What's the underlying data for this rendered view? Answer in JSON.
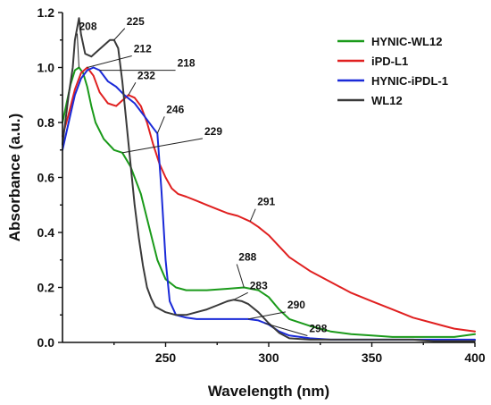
{
  "chart_data": {
    "type": "line",
    "xlabel": "Wavelength (nm)",
    "ylabel": "Absorbance (a.u.)",
    "xlim": [
      200,
      400
    ],
    "ylim": [
      0,
      1.2
    ],
    "xticks": [
      250,
      300,
      350,
      400
    ],
    "xtick_labels": [
      "250",
      "300",
      "350",
      "400"
    ],
    "yticks": [
      0.0,
      0.2,
      0.4,
      0.6,
      0.8,
      1.0,
      1.2
    ],
    "ytick_labels": [
      "0.0",
      "0.2",
      "0.4",
      "0.6",
      "0.8",
      "1.0",
      "1.2"
    ],
    "legend_position": "top-right",
    "series": [
      {
        "name": "HYNIC-WL12",
        "color": "#1a9a1a",
        "x": [
          200,
          204,
          206,
          208,
          210,
          212,
          214,
          216,
          220,
          225,
          229,
          233,
          238,
          242,
          246,
          250,
          255,
          260,
          265,
          270,
          280,
          288,
          295,
          300,
          305,
          310,
          320,
          330,
          340,
          350,
          360,
          370,
          380,
          390,
          400
        ],
        "y": [
          0.8,
          0.94,
          0.99,
          1.0,
          0.98,
          0.93,
          0.86,
          0.8,
          0.74,
          0.7,
          0.69,
          0.64,
          0.54,
          0.42,
          0.3,
          0.23,
          0.2,
          0.19,
          0.19,
          0.19,
          0.195,
          0.2,
          0.19,
          0.165,
          0.12,
          0.085,
          0.06,
          0.04,
          0.03,
          0.025,
          0.02,
          0.02,
          0.02,
          0.02,
          0.03
        ]
      },
      {
        "name": "iPD-L1",
        "color": "#e02020",
        "x": [
          200,
          203,
          206,
          209,
          212,
          215,
          218,
          222,
          226,
          229,
          232,
          235,
          238,
          241,
          244,
          247,
          250,
          253,
          256,
          260,
          265,
          270,
          275,
          280,
          285,
          291,
          295,
          300,
          305,
          310,
          320,
          330,
          340,
          350,
          360,
          370,
          380,
          385,
          390,
          400
        ],
        "y": [
          0.75,
          0.83,
          0.92,
          0.98,
          1.0,
          0.97,
          0.91,
          0.87,
          0.86,
          0.88,
          0.9,
          0.89,
          0.86,
          0.8,
          0.72,
          0.65,
          0.6,
          0.56,
          0.54,
          0.53,
          0.515,
          0.5,
          0.485,
          0.47,
          0.46,
          0.44,
          0.42,
          0.39,
          0.35,
          0.31,
          0.26,
          0.22,
          0.18,
          0.15,
          0.12,
          0.09,
          0.07,
          0.06,
          0.05,
          0.04
        ]
      },
      {
        "name": "HYNIC-iPDL-1",
        "color": "#1a2ad8",
        "x": [
          200,
          203,
          206,
          209,
          212,
          215,
          218,
          222,
          226,
          230,
          235,
          240,
          244,
          246,
          248,
          250,
          252,
          255,
          260,
          265,
          270,
          280,
          290,
          295,
          300,
          305,
          310,
          320,
          330,
          340,
          350,
          360,
          370,
          380,
          390,
          400
        ],
        "y": [
          0.7,
          0.8,
          0.9,
          0.96,
          0.99,
          1.0,
          0.99,
          0.95,
          0.93,
          0.9,
          0.87,
          0.82,
          0.78,
          0.76,
          0.55,
          0.3,
          0.15,
          0.1,
          0.09,
          0.085,
          0.085,
          0.085,
          0.085,
          0.08,
          0.065,
          0.04,
          0.025,
          0.015,
          0.01,
          0.01,
          0.01,
          0.01,
          0.01,
          0.01,
          0.01,
          0.01
        ]
      },
      {
        "name": "WL12",
        "color": "#3a3a3a",
        "x": [
          200,
          203,
          205,
          206,
          208,
          209,
          211,
          214,
          217,
          220,
          223,
          225,
          227,
          229,
          231,
          233,
          235,
          237,
          239,
          241,
          243,
          245,
          250,
          255,
          260,
          265,
          270,
          275,
          280,
          283,
          287,
          290,
          295,
          300,
          305,
          310,
          320,
          330,
          340,
          350,
          360,
          370,
          380,
          390,
          400
        ],
        "y": [
          0.72,
          0.9,
          1.0,
          1.1,
          1.18,
          1.12,
          1.05,
          1.04,
          1.06,
          1.08,
          1.1,
          1.1,
          1.07,
          0.95,
          0.8,
          0.65,
          0.5,
          0.38,
          0.28,
          0.2,
          0.16,
          0.13,
          0.11,
          0.1,
          0.1,
          0.11,
          0.12,
          0.135,
          0.15,
          0.155,
          0.15,
          0.14,
          0.11,
          0.07,
          0.035,
          0.015,
          0.01,
          0.01,
          0.01,
          0.01,
          0.01,
          0.01,
          0.005,
          0.005,
          0.005
        ]
      }
    ],
    "annotations": [
      {
        "text": "208",
        "x": 208,
        "y": 1.0
      },
      {
        "text": "225",
        "x": 225,
        "y": 1.1
      },
      {
        "text": "212",
        "x": 212,
        "y": 1.0
      },
      {
        "text": "218",
        "x": 218,
        "y": 0.99
      },
      {
        "text": "232",
        "x": 232,
        "y": 0.9
      },
      {
        "text": "246",
        "x": 246,
        "y": 0.76
      },
      {
        "text": "229",
        "x": 229,
        "y": 0.69
      },
      {
        "text": "291",
        "x": 291,
        "y": 0.44
      },
      {
        "text": "288",
        "x": 288,
        "y": 0.2
      },
      {
        "text": "283",
        "x": 283,
        "y": 0.155
      },
      {
        "text": "290",
        "x": 290,
        "y": 0.085
      },
      {
        "text": "298",
        "x": 298,
        "y": 0.07
      }
    ]
  }
}
